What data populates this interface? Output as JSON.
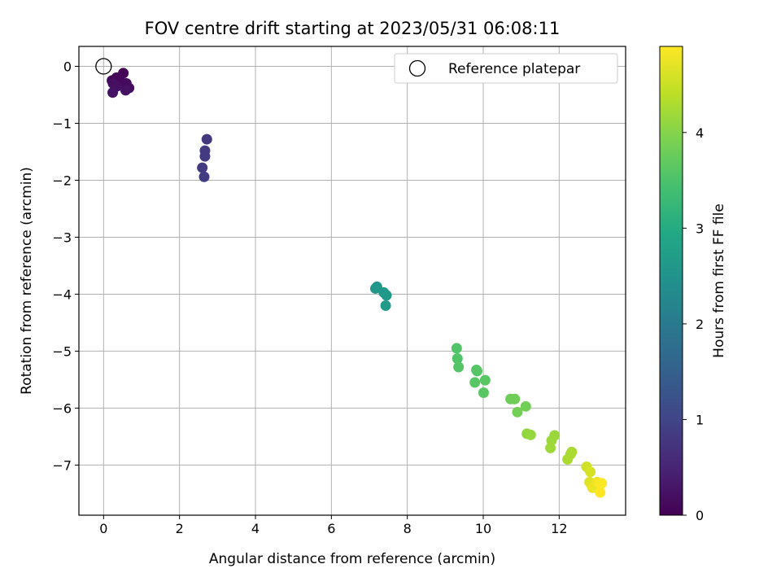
{
  "chart_data": {
    "type": "scatter",
    "title": "FOV centre drift starting at 2023/05/31 06:08:11",
    "xlabel": "Angular distance from reference (arcmin)",
    "ylabel": "Rotation from reference (arcmin)",
    "xlim": [
      -0.65,
      13.75
    ],
    "ylim": [
      -7.88,
      0.35
    ],
    "xticks": [
      0,
      2,
      4,
      6,
      8,
      10,
      12
    ],
    "xtick_labels": [
      "0",
      "2",
      "4",
      "6",
      "8",
      "10",
      "12"
    ],
    "yticks": [
      0,
      -1,
      -2,
      -3,
      -4,
      -5,
      -6,
      -7
    ],
    "ytick_labels": [
      "0",
      "−1",
      "−2",
      "−3",
      "−4",
      "−5",
      "−6",
      "−7"
    ],
    "grid": true,
    "legend": {
      "placement": "upper right",
      "entries": [
        "Reference platepar"
      ]
    },
    "reference_point": {
      "x": 0,
      "y": 0
    },
    "colormap": "viridis",
    "colorbar": {
      "label": "Hours from first FF file",
      "range": [
        0,
        4.9
      ],
      "ticks": [
        0,
        1,
        2,
        3,
        4
      ],
      "tick_labels": [
        "0",
        "1",
        "2",
        "3",
        "4"
      ]
    },
    "series": [
      {
        "x": [
          0.52,
          0.34,
          0.22,
          0.45,
          0.6,
          0.67,
          0.25,
          0.35,
          0.58,
          0.24,
          2.72,
          2.67,
          2.67,
          2.6,
          2.65,
          7.2,
          7.16,
          7.38,
          7.45,
          7.43,
          9.3,
          9.32,
          9.35,
          9.82,
          9.84,
          9.78,
          10.05,
          10.01,
          10.72,
          10.83,
          11.12,
          10.9,
          11.15,
          11.25,
          11.88,
          11.8,
          11.77,
          12.33,
          12.3,
          12.22,
          12.72,
          12.82,
          12.8,
          12.85,
          12.88,
          13.0,
          13.05,
          13.12,
          13.08
        ],
        "y": [
          -0.12,
          -0.2,
          -0.25,
          -0.27,
          -0.3,
          -0.38,
          -0.3,
          -0.35,
          -0.42,
          -0.46,
          -1.28,
          -1.48,
          -1.58,
          -1.78,
          -1.94,
          -3.87,
          -3.9,
          -3.97,
          -4.02,
          -4.2,
          -4.95,
          -5.13,
          -5.28,
          -5.33,
          -5.35,
          -5.55,
          -5.51,
          -5.73,
          -5.84,
          -5.84,
          -5.97,
          -6.07,
          -6.45,
          -6.47,
          -6.48,
          -6.57,
          -6.7,
          -6.77,
          -6.81,
          -6.9,
          -7.03,
          -7.12,
          -7.3,
          -7.35,
          -7.4,
          -7.3,
          -7.32,
          -7.32,
          -7.48
        ],
        "hours": [
          0.02,
          0.05,
          0.08,
          0.1,
          0.13,
          0.16,
          0.18,
          0.2,
          0.22,
          0.24,
          0.8,
          0.82,
          0.84,
          0.86,
          0.88,
          2.55,
          2.57,
          2.6,
          2.62,
          2.64,
          3.55,
          3.56,
          3.57,
          3.58,
          3.6,
          3.61,
          3.62,
          3.63,
          3.8,
          3.82,
          3.84,
          3.86,
          4.1,
          4.12,
          4.15,
          4.17,
          4.19,
          4.25,
          4.27,
          4.28,
          4.55,
          4.6,
          4.65,
          4.7,
          4.75,
          4.8,
          4.85,
          4.88,
          4.9
        ]
      }
    ]
  }
}
